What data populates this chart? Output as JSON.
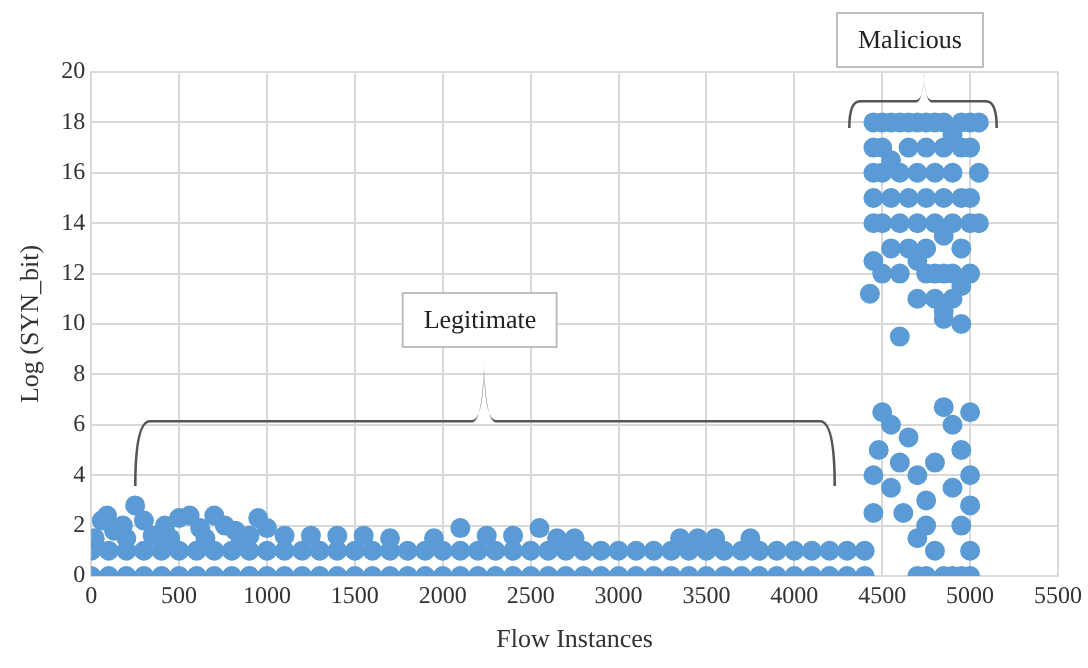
{
  "chart_data": {
    "type": "scatter",
    "xlabel": "Flow Instances",
    "ylabel": "Log (SYN_bit)",
    "annotations": [
      "Legitimate",
      "Malicious"
    ],
    "xlim": [
      0,
      5500
    ],
    "xticks": [
      0,
      500,
      1000,
      1500,
      2000,
      2500,
      3000,
      3500,
      4000,
      4500,
      5000,
      5500
    ],
    "ylim": [
      0,
      20
    ],
    "yticks": [
      0,
      2,
      4,
      6,
      8,
      10,
      12,
      14,
      16,
      18,
      20
    ],
    "grid": true,
    "marker": "circle",
    "series": [
      {
        "color": "#5b9bd5",
        "x": [
          0,
          100,
          200,
          300,
          400,
          500,
          600,
          700,
          800,
          900,
          1000,
          1100,
          1200,
          1300,
          1400,
          1500,
          1600,
          1700,
          1800,
          1900,
          2000,
          2100,
          2200,
          2300,
          2400,
          2500,
          2600,
          2700,
          2800,
          2900,
          3000,
          3100,
          3200,
          3300,
          3400,
          3500,
          3600,
          3700,
          3800,
          3900,
          4000,
          4100,
          4200,
          4300,
          4400,
          0,
          100,
          200,
          300,
          400,
          500,
          600,
          700,
          800,
          900,
          1000,
          1100,
          1200,
          1300,
          1400,
          1500,
          1600,
          1700,
          1800,
          1900,
          2000,
          2100,
          2200,
          2300,
          2400,
          2500,
          2600,
          2700,
          2800,
          2900,
          3000,
          3100,
          3200,
          3300,
          3400,
          3500,
          3600,
          3700,
          3800,
          3900,
          4000,
          4100,
          4200,
          4300,
          4400,
          20,
          60,
          90,
          130,
          180,
          250,
          300,
          350,
          420,
          500,
          560,
          620,
          700,
          760,
          820,
          900,
          950,
          1000,
          1100,
          1250,
          1400,
          1550,
          1700,
          1950,
          2100,
          2250,
          2400,
          2550,
          2650,
          2750,
          3350,
          3450,
          3550,
          3750,
          200,
          450,
          650,
          850,
          4450,
          4450,
          4450,
          4450,
          4450,
          4500,
          4500,
          4500,
          4500,
          4500,
          4550,
          4550,
          4550,
          4550,
          4600,
          4600,
          4600,
          4600,
          4650,
          4650,
          4650,
          4650,
          4700,
          4700,
          4700,
          4700,
          4700,
          4750,
          4750,
          4750,
          4750,
          4750,
          4800,
          4800,
          4800,
          4800,
          4800,
          4850,
          4850,
          4850,
          4850,
          4850,
          4850,
          4900,
          4900,
          4900,
          4900,
          4900,
          4950,
          4950,
          4950,
          4950,
          4950,
          4950,
          5000,
          5000,
          5000,
          5000,
          5000,
          5050,
          5050,
          5050,
          4430,
          4450,
          4600,
          4850,
          4450,
          4450,
          4480,
          4500,
          4550,
          4550,
          4600,
          4620,
          4650,
          4700,
          4700,
          4750,
          4750,
          4800,
          4800,
          4850,
          4900,
          4900,
          4950,
          4950,
          5000,
          5000,
          5000,
          5000,
          4700,
          4750,
          4850,
          4900,
          4950,
          5000
        ],
        "values": [
          0,
          0,
          0,
          0,
          0,
          0,
          0,
          0,
          0,
          0,
          0,
          0,
          0,
          0,
          0,
          0,
          0,
          0,
          0,
          0,
          0,
          0,
          0,
          0,
          0,
          0,
          0,
          0,
          0,
          0,
          0,
          0,
          0,
          0,
          0,
          0,
          0,
          0,
          0,
          0,
          0,
          0,
          0,
          0,
          0,
          1,
          1,
          1,
          1,
          1,
          1,
          1,
          1,
          1,
          1,
          1,
          1,
          1,
          1,
          1,
          1,
          1,
          1,
          1,
          1,
          1,
          1,
          1,
          1,
          1,
          1,
          1,
          1,
          1,
          1,
          1,
          1,
          1,
          1,
          1,
          1,
          1,
          1,
          1,
          1,
          1,
          1,
          1,
          1,
          1,
          1.5,
          2.2,
          2.4,
          1.8,
          2,
          2.8,
          2.2,
          1.6,
          2,
          2.3,
          2.4,
          1.9,
          2.4,
          2,
          1.8,
          1.6,
          2.3,
          1.9,
          1.6,
          1.6,
          1.6,
          1.6,
          1.5,
          1.5,
          1.9,
          1.6,
          1.6,
          1.9,
          1.5,
          1.5,
          1.5,
          1.5,
          1.5,
          1.5,
          1.5,
          1.5,
          1.5,
          1.5,
          14,
          15,
          16,
          17,
          18,
          12,
          14,
          16,
          17,
          18,
          13,
          15,
          16.5,
          18,
          12,
          14,
          16,
          18,
          13,
          15,
          17,
          18,
          11,
          12.5,
          14,
          16,
          18,
          12,
          13,
          15,
          17,
          18,
          11,
          12,
          14,
          16,
          18,
          10.5,
          12,
          13.5,
          15,
          17,
          18,
          11,
          12,
          14,
          16,
          17.5,
          10,
          11.5,
          13,
          15,
          17,
          18,
          12,
          14,
          15,
          17,
          18,
          14,
          16,
          18,
          11.2,
          12.5,
          9.5,
          10.2,
          2.5,
          4,
          5,
          6.5,
          6,
          3.5,
          4.5,
          2.5,
          5.5,
          4,
          1.5,
          3,
          2,
          1,
          4.5,
          6.7,
          6,
          3.5,
          5,
          2,
          6.5,
          4,
          2.8,
          1,
          0,
          0,
          0,
          0,
          0,
          0
        ]
      }
    ]
  }
}
